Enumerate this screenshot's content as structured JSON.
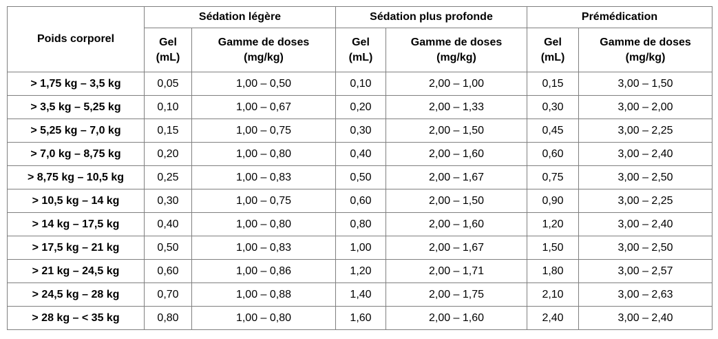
{
  "table": {
    "row_header": "Poids corporel",
    "groups": [
      "Sédation légère",
      "Sédation plus profonde",
      "Prémédication"
    ],
    "sub_headers": {
      "gel": [
        "Gel",
        "(mL)"
      ],
      "range": [
        "Gamme de doses",
        "(mg/kg)"
      ]
    },
    "rows": [
      {
        "weight": "> 1,75 kg – 3,5 kg",
        "cells": [
          "0,05",
          "1,00 – 0,50",
          "0,10",
          "2,00 – 1,00",
          "0,15",
          "3,00 – 1,50"
        ]
      },
      {
        "weight": "> 3,5 kg – 5,25 kg",
        "cells": [
          "0,10",
          "1,00 – 0,67",
          "0,20",
          "2,00 – 1,33",
          "0,30",
          "3,00 – 2,00"
        ]
      },
      {
        "weight": "> 5,25 kg – 7,0 kg",
        "cells": [
          "0,15",
          "1,00 – 0,75",
          "0,30",
          "2,00 – 1,50",
          "0,45",
          "3,00 – 2,25"
        ]
      },
      {
        "weight": "> 7,0 kg – 8,75 kg",
        "cells": [
          "0,20",
          "1,00 – 0,80",
          "0,40",
          "2,00 – 1,60",
          "0,60",
          "3,00 – 2,40"
        ]
      },
      {
        "weight": "> 8,75 kg – 10,5 kg",
        "cells": [
          "0,25",
          "1,00 – 0,83",
          "0,50",
          "2,00 – 1,67",
          "0,75",
          "3,00 – 2,50"
        ]
      },
      {
        "weight": "> 10,5 kg – 14 kg",
        "cells": [
          "0,30",
          "1,00 – 0,75",
          "0,60",
          "2,00 – 1,50",
          "0,90",
          "3,00 – 2,25"
        ]
      },
      {
        "weight": "> 14 kg – 17,5 kg",
        "cells": [
          "0,40",
          "1,00 – 0,80",
          "0,80",
          "2,00 – 1,60",
          "1,20",
          "3,00 – 2,40"
        ]
      },
      {
        "weight": "> 17,5 kg – 21 kg",
        "cells": [
          "0,50",
          "1,00 – 0,83",
          "1,00",
          "2,00 – 1,67",
          "1,50",
          "3,00 – 2,50"
        ]
      },
      {
        "weight": "> 21 kg – 24,5 kg",
        "cells": [
          "0,60",
          "1,00 – 0,86",
          "1,20",
          "2,00 – 1,71",
          "1,80",
          "3,00 – 2,57"
        ]
      },
      {
        "weight": "> 24,5 kg – 28 kg",
        "cells": [
          "0,70",
          "1,00 – 0,88",
          "1,40",
          "2,00 – 1,75",
          "2,10",
          "3,00 – 2,63"
        ]
      },
      {
        "weight": "> 28 kg – < 35 kg",
        "cells": [
          "0,80",
          "1,00 – 0,80",
          "1,60",
          "2,00 – 1,60",
          "2,40",
          "3,00 – 2,40"
        ]
      }
    ]
  }
}
